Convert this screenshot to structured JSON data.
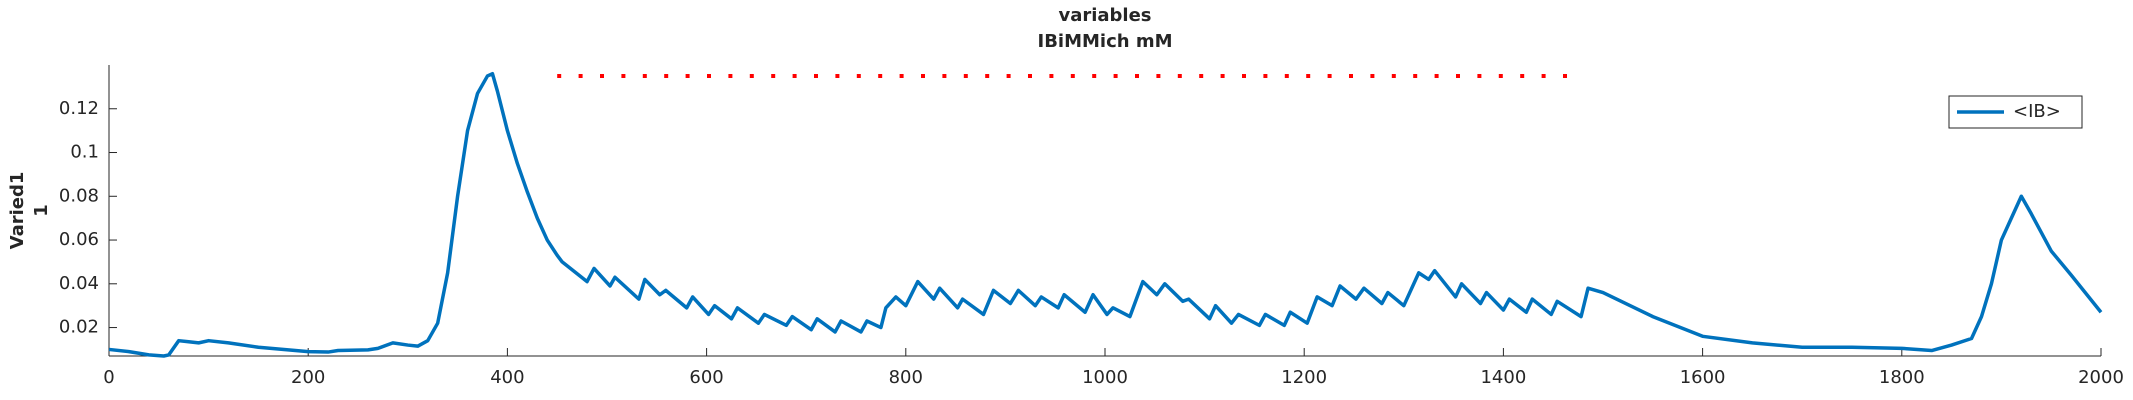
{
  "chart_data": {
    "type": "line",
    "title": [
      "variables",
      "IBiMMich mM"
    ],
    "ylabel": [
      "Varied1",
      "1"
    ],
    "x": [
      0,
      20,
      40,
      55,
      60,
      70,
      80,
      90,
      100,
      120,
      150,
      200,
      220,
      230,
      260,
      270,
      285,
      300,
      310,
      320,
      330,
      340,
      350,
      360,
      370,
      380,
      385,
      390,
      400,
      410,
      420,
      430,
      440,
      450,
      455,
      480,
      487,
      503,
      508,
      532,
      538,
      553,
      559,
      580,
      586,
      602,
      608,
      625,
      631,
      652,
      658,
      680,
      686,
      705,
      711,
      729,
      735,
      755,
      761,
      775,
      780,
      790,
      800,
      812,
      828,
      834,
      852,
      857,
      878,
      888,
      905,
      913,
      930,
      936,
      953,
      959,
      980,
      988,
      1002,
      1008,
      1025,
      1038,
      1052,
      1060,
      1078,
      1084,
      1105,
      1111,
      1127,
      1134,
      1155,
      1161,
      1180,
      1186,
      1203,
      1213,
      1228,
      1236,
      1252,
      1260,
      1278,
      1284,
      1300,
      1315,
      1325,
      1331,
      1352,
      1358,
      1377,
      1383,
      1400,
      1406,
      1423,
      1429,
      1448,
      1454,
      1478,
      1485,
      1500,
      1550,
      1600,
      1650,
      1700,
      1750,
      1800,
      1830,
      1850,
      1870,
      1880,
      1890,
      1900,
      1910,
      1920,
      1930,
      1950,
      1970,
      2000
    ],
    "series": [
      {
        "name": "<IB>",
        "color": "#0072bd",
        "style": "solid",
        "values": [
          0.01,
          0.009,
          0.0075,
          0.007,
          0.0075,
          0.014,
          0.0135,
          0.013,
          0.014,
          0.013,
          0.011,
          0.009,
          0.0088,
          0.0095,
          0.0098,
          0.0105,
          0.013,
          0.012,
          0.0115,
          0.014,
          0.022,
          0.045,
          0.08,
          0.11,
          0.127,
          0.135,
          0.136,
          0.128,
          0.11,
          0.095,
          0.082,
          0.07,
          0.06,
          0.053,
          0.05,
          0.041,
          0.047,
          0.039,
          0.043,
          0.033,
          0.042,
          0.035,
          0.037,
          0.029,
          0.034,
          0.026,
          0.03,
          0.024,
          0.029,
          0.022,
          0.026,
          0.021,
          0.025,
          0.019,
          0.024,
          0.018,
          0.023,
          0.018,
          0.023,
          0.02,
          0.029,
          0.034,
          0.03,
          0.041,
          0.033,
          0.038,
          0.029,
          0.033,
          0.026,
          0.037,
          0.031,
          0.037,
          0.03,
          0.034,
          0.029,
          0.035,
          0.027,
          0.035,
          0.026,
          0.029,
          0.025,
          0.041,
          0.035,
          0.04,
          0.032,
          0.033,
          0.024,
          0.03,
          0.022,
          0.026,
          0.021,
          0.026,
          0.021,
          0.027,
          0.022,
          0.034,
          0.03,
          0.039,
          0.033,
          0.038,
          0.031,
          0.036,
          0.03,
          0.045,
          0.042,
          0.046,
          0.034,
          0.04,
          0.031,
          0.036,
          0.028,
          0.033,
          0.027,
          0.033,
          0.026,
          0.032,
          0.025,
          0.038,
          0.036,
          0.025,
          0.016,
          0.013,
          0.011,
          0.011,
          0.0105,
          0.0095,
          0.012,
          0.015,
          0.025,
          0.04,
          0.06,
          0.07,
          0.08,
          0.072,
          0.055,
          0.044,
          0.027
        ]
      },
      {
        "color": "#ff0000",
        "style": "dotted",
        "x": [
          450,
          1480
        ],
        "values": [
          0.135,
          0.135
        ]
      }
    ],
    "xlim": [
      0,
      2000
    ],
    "xticks": [
      0,
      200,
      400,
      600,
      800,
      1000,
      1200,
      1400,
      1600,
      1800,
      2000
    ],
    "ylim": [
      0.007,
      0.14
    ],
    "yticks": [
      0.02,
      0.04,
      0.06,
      0.08,
      0.1,
      0.12
    ],
    "grid": false,
    "legend": "upper right"
  }
}
